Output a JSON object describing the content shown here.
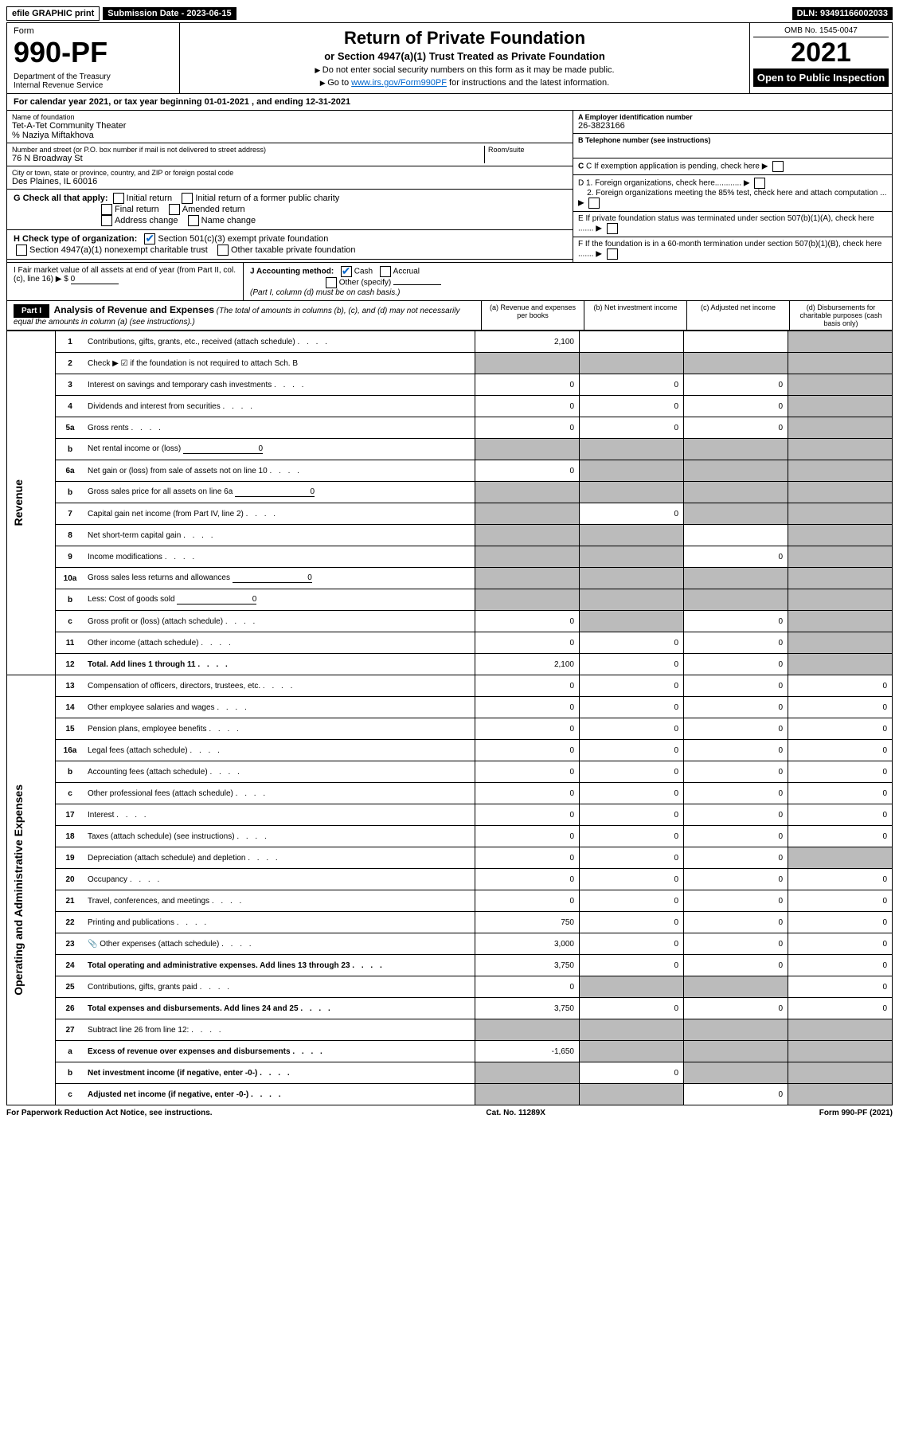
{
  "top": {
    "efile": "efile GRAPHIC print",
    "submission": "Submission Date - 2023-06-15",
    "dln": "DLN: 93491166002033"
  },
  "header": {
    "form": "Form",
    "number": "990-PF",
    "dept": "Department of the Treasury\nInternal Revenue Service",
    "title": "Return of Private Foundation",
    "subtitle": "or Section 4947(a)(1) Trust Treated as Private Foundation",
    "note1": "Do not enter social security numbers on this form as it may be made public.",
    "note2": "Go to ",
    "note2link": "www.irs.gov/Form990PF",
    "note2b": " for instructions and the latest information.",
    "omb": "OMB No. 1545-0047",
    "year": "2021",
    "open": "Open to Public Inspection"
  },
  "cal": "For calendar year 2021, or tax year beginning 01-01-2021                          , and ending 12-31-2021",
  "id": {
    "name_label": "Name of foundation",
    "name": "Tet-A-Tet Community Theater",
    "care": "% Naziya Miftakhova",
    "addr_label": "Number and street (or P.O. box number if mail is not delivered to street address)",
    "addr": "76 N Broadway St",
    "room_label": "Room/suite",
    "city_label": "City or town, state or province, country, and ZIP or foreign postal code",
    "city": "Des Plaines, IL  60016",
    "ein_label": "A Employer identification number",
    "ein": "26-3823166",
    "tel_label": "B Telephone number (see instructions)",
    "c": "C If exemption application is pending, check here",
    "d1": "D 1. Foreign organizations, check here............",
    "d2": "2. Foreign organizations meeting the 85% test, check here and attach computation ...",
    "e": "E  If private foundation status was terminated under section 507(b)(1)(A), check here .......",
    "f": "F  If the foundation is in a 60-month termination under section 507(b)(1)(B), check here .......",
    "g": "G Check all that apply:",
    "g_opts": [
      "Initial return",
      "Initial return of a former public charity",
      "Final return",
      "Amended return",
      "Address change",
      "Name change"
    ],
    "h": "H Check type of organization:",
    "h1": "Section 501(c)(3) exempt private foundation",
    "h2": "Section 4947(a)(1) nonexempt charitable trust",
    "h3": "Other taxable private foundation",
    "i": "I Fair market value of all assets at end of year (from Part II, col. (c), line 16) ▶ $",
    "i_val": "0",
    "j": "J Accounting method:",
    "j_cash": "Cash",
    "j_acc": "Accrual",
    "j_other": "Other (specify)",
    "j_note": "(Part I, column (d) must be on cash basis.)"
  },
  "part1": {
    "label": "Part I",
    "title": "Analysis of Revenue and Expenses",
    "sub": "(The total of amounts in columns (b), (c), and (d) may not necessarily equal the amounts in column (a) (see instructions).)",
    "cols": {
      "a": "(a)   Revenue and expenses per books",
      "b": "(b)   Net investment income",
      "c": "(c)   Adjusted net income",
      "d": "(d)   Disbursements for charitable purposes (cash basis only)"
    }
  },
  "sections": {
    "rev": "Revenue",
    "exp": "Operating and Administrative Expenses"
  },
  "rows": [
    {
      "n": "1",
      "d": "Contributions, gifts, grants, etc., received (attach schedule)",
      "a": "2,100",
      "b": "",
      "c": "",
      "dS": true
    },
    {
      "n": "2",
      "d": "Check ▶ ☑ if the foundation is not required to attach Sch. B",
      "aS": true,
      "bS": true,
      "cS": true,
      "dS": true,
      "noDots": true
    },
    {
      "n": "3",
      "d": "Interest on savings and temporary cash investments",
      "a": "0",
      "b": "0",
      "c": "0",
      "dS": true
    },
    {
      "n": "4",
      "d": "Dividends and interest from securities",
      "a": "0",
      "b": "0",
      "c": "0",
      "dS": true
    },
    {
      "n": "5a",
      "d": "Gross rents",
      "a": "0",
      "b": "0",
      "c": "0",
      "dS": true
    },
    {
      "n": "b",
      "d": "Net rental income or (loss)",
      "inline": "0",
      "aS": true,
      "bS": true,
      "cS": true,
      "dS": true
    },
    {
      "n": "6a",
      "d": "Net gain or (loss) from sale of assets not on line 10",
      "a": "0",
      "bS": true,
      "cS": true,
      "dS": true
    },
    {
      "n": "b",
      "d": "Gross sales price for all assets on line 6a",
      "inline": "0",
      "aS": true,
      "bS": true,
      "cS": true,
      "dS": true
    },
    {
      "n": "7",
      "d": "Capital gain net income (from Part IV, line 2)",
      "aS": true,
      "b": "0",
      "cS": true,
      "dS": true
    },
    {
      "n": "8",
      "d": "Net short-term capital gain",
      "aS": true,
      "bS": true,
      "c": "",
      "dS": true
    },
    {
      "n": "9",
      "d": "Income modifications",
      "aS": true,
      "bS": true,
      "c": "0",
      "dS": true
    },
    {
      "n": "10a",
      "d": "Gross sales less returns and allowances",
      "inline": "0",
      "aS": true,
      "bS": true,
      "cS": true,
      "dS": true
    },
    {
      "n": "b",
      "d": "Less: Cost of goods sold",
      "inline": "0",
      "aS": true,
      "bS": true,
      "cS": true,
      "dS": true
    },
    {
      "n": "c",
      "d": "Gross profit or (loss) (attach schedule)",
      "a": "0",
      "bS": true,
      "c": "0",
      "dS": true
    },
    {
      "n": "11",
      "d": "Other income (attach schedule)",
      "a": "0",
      "b": "0",
      "c": "0",
      "dS": true
    },
    {
      "n": "12",
      "d": "Total. Add lines 1 through 11",
      "bold": true,
      "a": "2,100",
      "b": "0",
      "c": "0",
      "dS": true
    },
    {
      "n": "13",
      "d": "Compensation of officers, directors, trustees, etc.",
      "a": "0",
      "b": "0",
      "c": "0",
      "dd": "0",
      "sec": "exp"
    },
    {
      "n": "14",
      "d": "Other employee salaries and wages",
      "a": "0",
      "b": "0",
      "c": "0",
      "dd": "0"
    },
    {
      "n": "15",
      "d": "Pension plans, employee benefits",
      "a": "0",
      "b": "0",
      "c": "0",
      "dd": "0"
    },
    {
      "n": "16a",
      "d": "Legal fees (attach schedule)",
      "a": "0",
      "b": "0",
      "c": "0",
      "dd": "0"
    },
    {
      "n": "b",
      "d": "Accounting fees (attach schedule)",
      "a": "0",
      "b": "0",
      "c": "0",
      "dd": "0"
    },
    {
      "n": "c",
      "d": "Other professional fees (attach schedule)",
      "a": "0",
      "b": "0",
      "c": "0",
      "dd": "0"
    },
    {
      "n": "17",
      "d": "Interest",
      "a": "0",
      "b": "0",
      "c": "0",
      "dd": "0"
    },
    {
      "n": "18",
      "d": "Taxes (attach schedule) (see instructions)",
      "a": "0",
      "b": "0",
      "c": "0",
      "dd": "0"
    },
    {
      "n": "19",
      "d": "Depreciation (attach schedule) and depletion",
      "a": "0",
      "b": "0",
      "c": "0",
      "dS": true
    },
    {
      "n": "20",
      "d": "Occupancy",
      "a": "0",
      "b": "0",
      "c": "0",
      "dd": "0"
    },
    {
      "n": "21",
      "d": "Travel, conferences, and meetings",
      "a": "0",
      "b": "0",
      "c": "0",
      "dd": "0"
    },
    {
      "n": "22",
      "d": "Printing and publications",
      "a": "750",
      "b": "0",
      "c": "0",
      "dd": "0"
    },
    {
      "n": "23",
      "d": "Other expenses (attach schedule)",
      "a": "3,000",
      "b": "0",
      "c": "0",
      "dd": "0",
      "icon": true
    },
    {
      "n": "24",
      "d": "Total operating and administrative expenses. Add lines 13 through 23",
      "bold": true,
      "a": "3,750",
      "b": "0",
      "c": "0",
      "dd": "0"
    },
    {
      "n": "25",
      "d": "Contributions, gifts, grants paid",
      "a": "0",
      "bS": true,
      "cS": true,
      "dd": "0"
    },
    {
      "n": "26",
      "d": "Total expenses and disbursements. Add lines 24 and 25",
      "bold": true,
      "a": "3,750",
      "b": "0",
      "c": "0",
      "dd": "0"
    },
    {
      "n": "27",
      "d": "Subtract line 26 from line 12:",
      "aS": true,
      "bS": true,
      "cS": true,
      "dS": true
    },
    {
      "n": "a",
      "d": "Excess of revenue over expenses and disbursements",
      "bold": true,
      "a": "-1,650",
      "bS": true,
      "cS": true,
      "dS": true
    },
    {
      "n": "b",
      "d": "Net investment income (if negative, enter -0-)",
      "bold": true,
      "aS": true,
      "b": "0",
      "cS": true,
      "dS": true
    },
    {
      "n": "c",
      "d": "Adjusted net income (if negative, enter -0-)",
      "bold": true,
      "aS": true,
      "bS": true,
      "c": "0",
      "dS": true
    }
  ],
  "footer": {
    "left": "For Paperwork Reduction Act Notice, see instructions.",
    "mid": "Cat. No. 11289X",
    "right": "Form 990-PF (2021)"
  }
}
